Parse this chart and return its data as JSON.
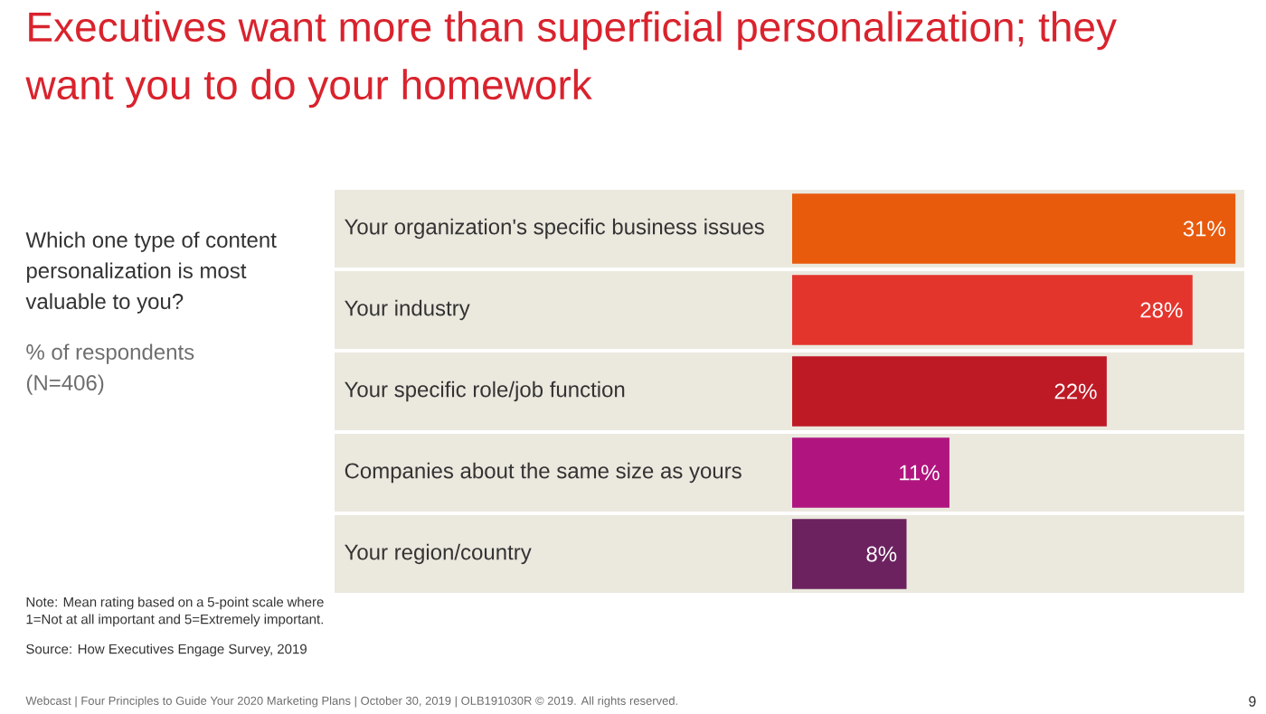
{
  "chart_data": {
    "type": "bar",
    "orientation": "horizontal",
    "title": "Executives want more than superficial personalization; they want you to do your homework",
    "subtitle": "Which one type of content personalization is most valuable to you?",
    "categories": [
      "Your organization's specific business issues",
      "Your industry",
      "Your specific role/job function",
      "Companies about the same size as yours",
      "Your region/country"
    ],
    "values": [
      31,
      28,
      22,
      11,
      8
    ],
    "colors": [
      "#e85a0c",
      "#e4352d",
      "#be1a26",
      "#b0157f",
      "#6c225f"
    ],
    "value_labels": [
      "31%",
      "28%",
      "22%",
      "11%",
      "8%"
    ],
    "annotations": [
      "% of respondents (N=406)",
      "Note: Mean rating based on a 5-point scale where 1=Not at all important and 5=Extremely important.",
      "Source: How Executives Engage Survey, 2019",
      "Webcast | Four Principles to Guide Your 2020 Marketing Plans | October 30, 2019 | OLB191030R © 2019. All rights reserved.",
      "9"
    ]
  }
}
